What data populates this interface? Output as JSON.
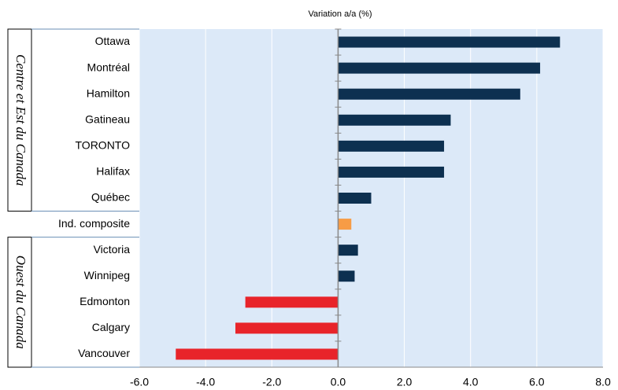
{
  "chart_data": {
    "type": "barh",
    "subtitle": "Variation a/a (%)",
    "groups": [
      {
        "label": "Centre et Est du Canada",
        "start": 0,
        "end": 6
      },
      {
        "label": "Ouest du Canada",
        "start": 8,
        "end": 12
      }
    ],
    "categories": [
      "Ottawa",
      "Montréal",
      "Hamilton",
      "Gatineau",
      "TORONTO",
      "Halifax",
      "Québec",
      "Ind. composite",
      "Victoria",
      "Winnipeg",
      "Edmonton",
      "Calgary",
      "Vancouver"
    ],
    "values": [
      6.7,
      6.1,
      5.5,
      3.4,
      3.2,
      3.2,
      1.0,
      0.4,
      0.6,
      0.5,
      -2.8,
      -3.1,
      -4.9
    ],
    "colors": [
      "#0d3050",
      "#0d3050",
      "#0d3050",
      "#0d3050",
      "#0d3050",
      "#0d3050",
      "#0d3050",
      "#f79c46",
      "#0d3050",
      "#0d3050",
      "#e8242a",
      "#e8242a",
      "#e8242a"
    ],
    "xlim": [
      -6,
      8
    ],
    "xticks": [
      {
        "value": -6,
        "label": "-6.0"
      },
      {
        "value": -4,
        "label": "-4.0"
      },
      {
        "value": -2,
        "label": "-2.0"
      },
      {
        "value": 0,
        "label": "0.0"
      },
      {
        "value": 2,
        "label": "2.0"
      },
      {
        "value": 4,
        "label": "4.0"
      },
      {
        "value": 6,
        "label": "6.0"
      },
      {
        "value": 8,
        "label": "8.0"
      }
    ],
    "grid": true,
    "background": "#dce9f8"
  }
}
